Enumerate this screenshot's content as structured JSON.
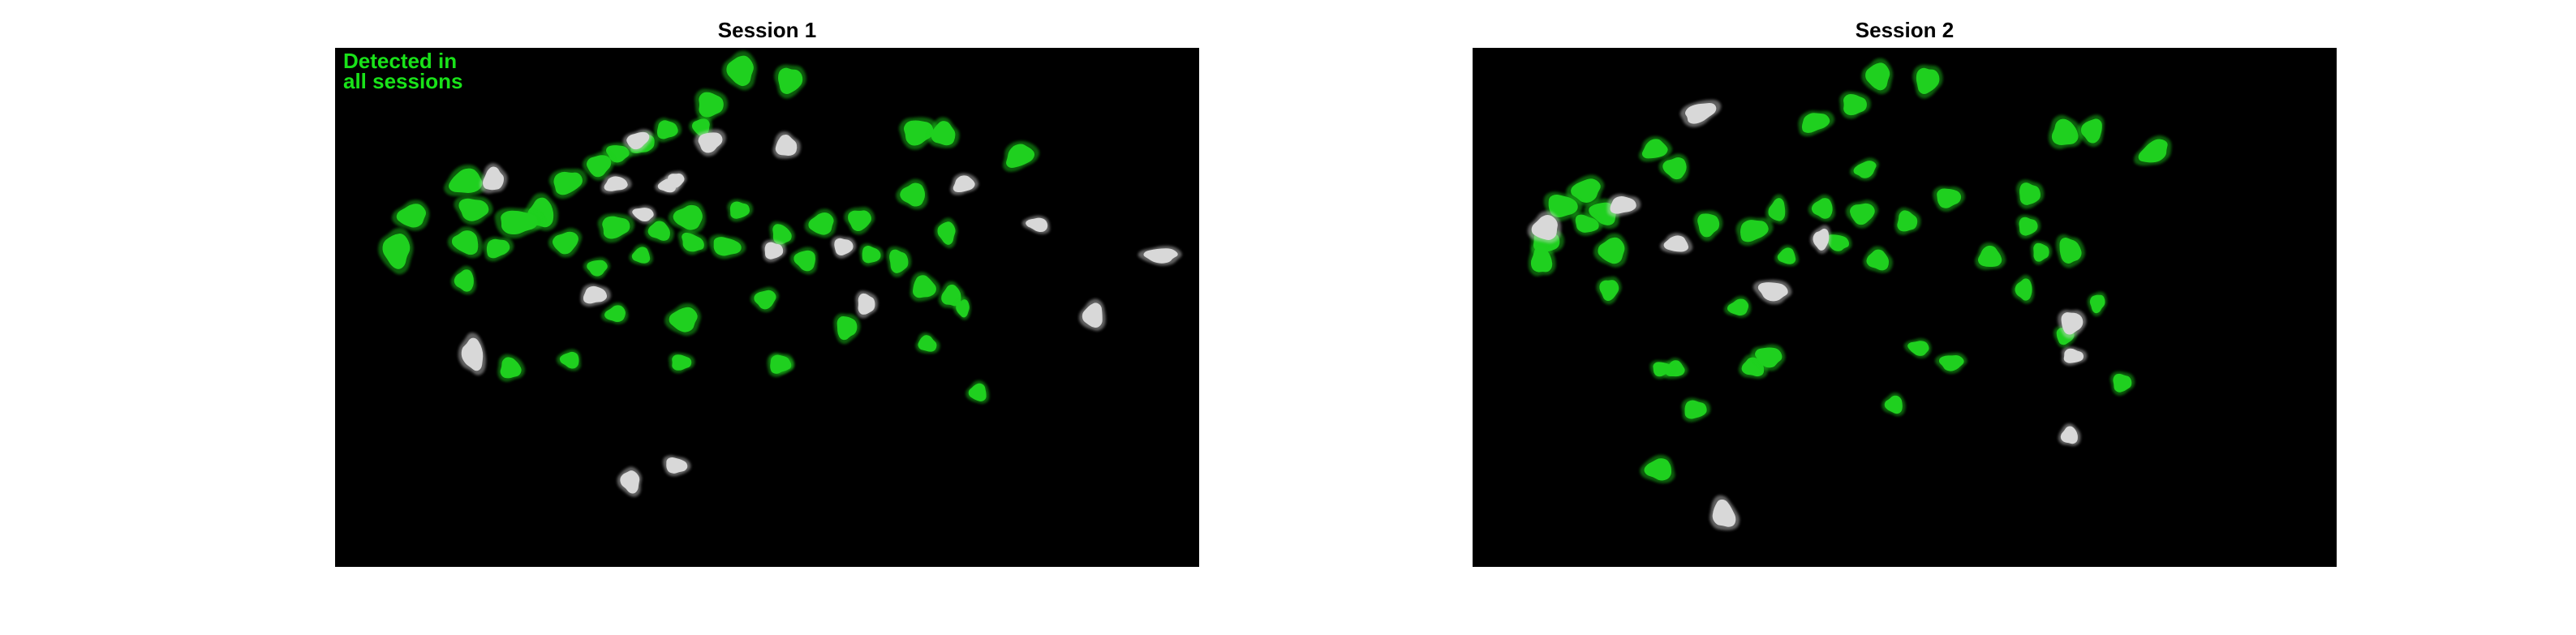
{
  "colors": {
    "shared_cell": "#1fd01f",
    "unique_cell": "#d8d8d8",
    "background": "#000000",
    "legend_text": "#19e219"
  },
  "panels": [
    {
      "title": "Session 1",
      "legend": [
        "Detected in",
        "all sessions"
      ]
    },
    {
      "title": "Session 2"
    }
  ]
}
